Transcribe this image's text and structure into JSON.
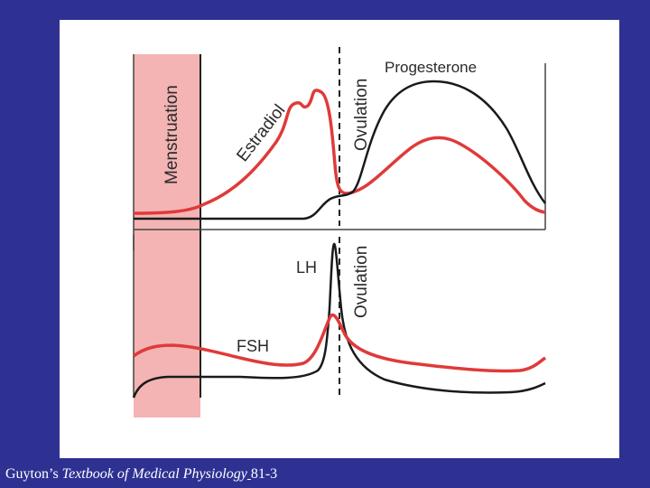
{
  "diagram": {
    "colors": {
      "background": "#2e3192",
      "panel": "#ffffff",
      "red_curve": "#e03a3a",
      "black_curve": "#1a1a1a",
      "menstruation_band": "#f4b4b4"
    },
    "top_panel": {
      "menstruation_label": "Menstruation",
      "ovulation_label": "Ovulation",
      "estradiol_label": "Estradiol",
      "progesterone_label": "Progesterone"
    },
    "bottom_panel": {
      "ovulation_label": "Ovulation",
      "lh_label": "LH",
      "fsh_label": "FSH"
    }
  },
  "caption": {
    "author": "Guyton’s ",
    "book_title": "Textbook of Medical Physiology",
    "separator": " ",
    "figure_ref": "81-3"
  }
}
